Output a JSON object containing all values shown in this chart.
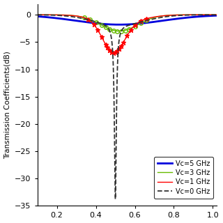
{
  "ylabel": "Transmission Coefficients(dB)",
  "xlim": [
    0.1,
    1.02
  ],
  "ylim": [
    -35,
    2
  ],
  "yticks": [
    0,
    -5,
    -10,
    -15,
    -20,
    -25,
    -30,
    -35
  ],
  "xticks": [
    0.2,
    0.4,
    0.6,
    0.8,
    1.0
  ],
  "background_color": "#ffffff",
  "series": [
    {
      "label": "Vc=0 GHz",
      "color": "#333333",
      "linestyle": "--",
      "linewidth": 1.3,
      "marker": null,
      "markersize": 0
    },
    {
      "label": "Vc=1 GHz",
      "color": "#ff0000",
      "linestyle": "-",
      "linewidth": 1.0,
      "marker": "*",
      "markersize": 5
    },
    {
      "label": "Vc=3 GHz",
      "color": "#66bb00",
      "linestyle": "-",
      "linewidth": 1.0,
      "marker": "o",
      "markersize": 4,
      "markerfacecolor": "none"
    },
    {
      "label": "Vc=5 GHz",
      "color": "#0000dd",
      "linestyle": "-",
      "linewidth": 2.0,
      "marker": null,
      "markersize": 0
    }
  ]
}
